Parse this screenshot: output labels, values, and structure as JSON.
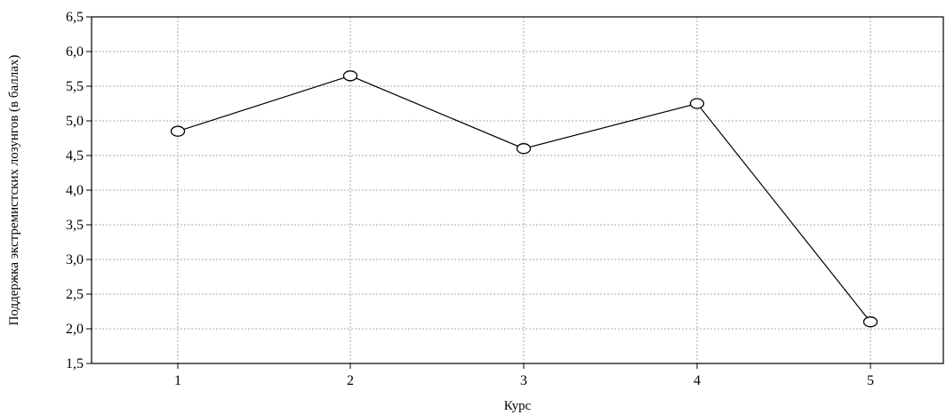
{
  "chart_data": {
    "type": "line",
    "title": "",
    "xlabel": "Курс",
    "ylabel": "Поддержка экстремистских лозунгов (в баллах)",
    "categories": [
      "1",
      "2",
      "3",
      "4",
      "5"
    ],
    "series": [
      {
        "values": [
          4.85,
          5.65,
          4.6,
          5.25,
          2.1
        ]
      }
    ],
    "ylim": [
      1.5,
      6.5
    ],
    "yticks": [
      "1,5",
      "2,0",
      "2,5",
      "3,0",
      "3,5",
      "4,0",
      "4,5",
      "5,0",
      "5,5",
      "6,0",
      "6,5"
    ],
    "grid": true,
    "legend": "none",
    "colors": {
      "line": "#000000",
      "marker_fill": "#ffffff",
      "grid": "#a8a8a8"
    }
  }
}
